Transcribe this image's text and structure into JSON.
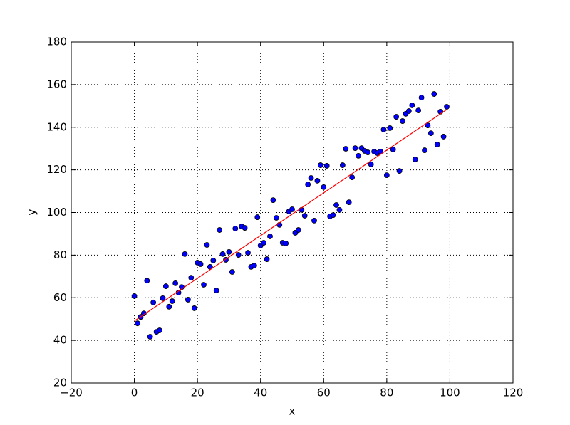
{
  "chart_data": {
    "type": "scatter",
    "xlabel": "x",
    "ylabel": "y",
    "xlim": [
      -20,
      120
    ],
    "xticks": [
      {
        "value": -20,
        "label": "−20"
      },
      0,
      20,
      40,
      60,
      80,
      100,
      120
    ],
    "ylim": [
      20,
      180
    ],
    "yticks": [
      20,
      40,
      60,
      80,
      100,
      120,
      140,
      160,
      180
    ],
    "grid": true,
    "series": [
      {
        "type": "scatter",
        "color": "#0000ff",
        "x": [
          0,
          1,
          2,
          3,
          4,
          5,
          6,
          7,
          8,
          9,
          10,
          11,
          12,
          13,
          14,
          15,
          16,
          17,
          18,
          19,
          20,
          21,
          22,
          23,
          24,
          25,
          26,
          27,
          28,
          29,
          30,
          31,
          32,
          33,
          34,
          35,
          36,
          37,
          38,
          39,
          40,
          41,
          42,
          43,
          44,
          45,
          46,
          47,
          48,
          49,
          50,
          51,
          52,
          53,
          54,
          55,
          56,
          57,
          58,
          59,
          60,
          61,
          62,
          63,
          64,
          65,
          66,
          67,
          68,
          69,
          70,
          71,
          72,
          73,
          74,
          75,
          76,
          77,
          78,
          79,
          80,
          81,
          82,
          83,
          84,
          85,
          86,
          87,
          88,
          89,
          90,
          91,
          92,
          93,
          94,
          95,
          96,
          97,
          98,
          99
        ],
        "values": [
          60.8,
          48,
          51,
          52.7,
          68,
          41.7,
          57.8,
          44,
          44.7,
          59.8,
          65.4,
          55.8,
          58.4,
          66.8,
          62.4,
          65,
          80.5,
          59.1,
          69.4,
          55.1,
          76.5,
          75.8,
          66.1,
          84.8,
          74.5,
          77.5,
          63.4,
          91.8,
          80.5,
          77.8,
          81.5,
          72.1,
          92.5,
          80.1,
          93.5,
          92.8,
          81.1,
          74.5,
          75.1,
          97.8,
          84.5,
          85.8,
          78.1,
          88.8,
          105.8,
          97.5,
          94.2,
          85.8,
          85.5,
          100.5,
          101.5,
          90.5,
          91.8,
          101.2,
          98.5,
          113.2,
          116.2,
          96.2,
          114.9,
          122.2,
          111.9,
          121.9,
          98.2,
          98.8,
          103.5,
          101.2,
          122.2,
          129.9,
          104.8,
          116.5,
          130.2,
          126.6,
          130.2,
          128.9,
          128.2,
          122.6,
          128.6,
          127.9,
          128.6,
          138.9,
          117.5,
          139.6,
          129.6,
          144.9,
          119.5,
          142.9,
          146.3,
          147.6,
          150.3,
          124.9,
          147.9,
          153.9,
          129.2,
          140.9,
          137.2,
          155.6,
          131.9,
          147.3,
          135.6,
          149.6
        ]
      },
      {
        "type": "line",
        "color": "#ff0000",
        "x": [
          0,
          99
        ],
        "values": [
          49.1,
          148.3
        ]
      }
    ]
  }
}
